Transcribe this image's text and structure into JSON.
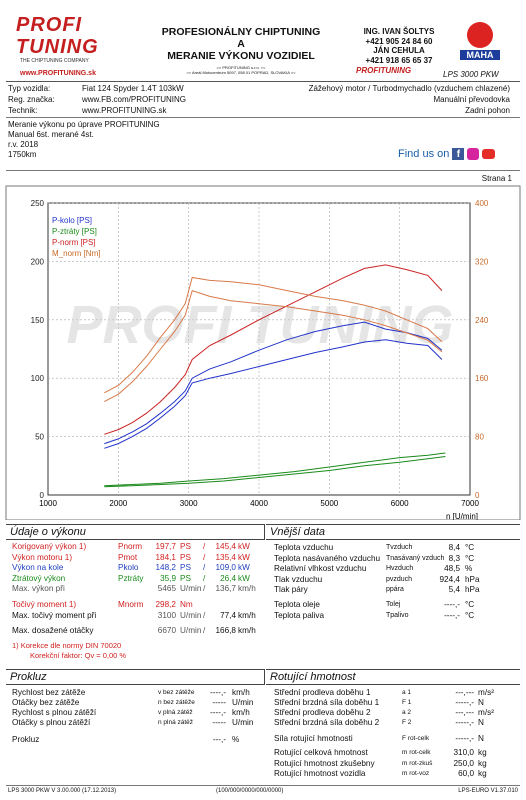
{
  "header": {
    "logo_text": "PROFI TUNING",
    "logo_sub": "THE CHIPTUNING COMPANY",
    "logo_url": "www.PROFITUNING.sk",
    "title_lines": [
      "PROFESIONÁLNY CHIPTUNING",
      "A",
      "MERANIE VÝKONU VOZIDIEL"
    ],
    "company_line1": ">> PROFITUNING s.r.o. <<",
    "company_line2": ">> Areál Motocentrum 5097, 058 01 POPRAD, SLOVAKIA <<",
    "contact_name": "ING. IVAN ŠOLTYS",
    "phone1": "+421 905 24 84 60",
    "contact_name2": "JÁN CEHULA",
    "phone2": "+421 918 65 65 37",
    "brand_small": "PROFITUNING",
    "maha_text": "MAHA",
    "model": "LPS 3000 PKW"
  },
  "vehicle": {
    "type_label": "Typ vozidla:",
    "type_value": "Fiat 124 Spyder 1.4T 103kW",
    "reg_label": "Reg. značka:",
    "reg_value": "www.FB.com/PROFITUNING",
    "tech_label": "Technik:",
    "tech_value": "www.PROFITUNING.sk",
    "right1": "Zážehový motor / Turbodmychadlo (vzduchem chlazené)",
    "right2": "Manuální převodovka",
    "right3": "Zadní pohon"
  },
  "notes": {
    "lines": [
      "Meranie výkonu po úprave PROFITUNING",
      "Manual 6st. merané 4st.",
      "r.v. 2018",
      "1750km"
    ],
    "find_us": "Find us on",
    "page": "Strana 1"
  },
  "chart_data": {
    "type": "line",
    "x_label": "n [U/min]",
    "x_ticks": [
      1000,
      2000,
      3000,
      4000,
      5000,
      6000,
      7000
    ],
    "y_left_ticks": [
      0,
      50,
      100,
      150,
      200,
      250
    ],
    "y_right_ticks": [
      0,
      80,
      160,
      240,
      320,
      400
    ],
    "legend": [
      "P-kolo [PS]",
      "P-ztráty [PS]",
      "P-norm [PS]",
      "M_norm [Nm]"
    ],
    "series": [
      {
        "name": "P-kolo [PS]",
        "color": "#2233cc",
        "unit": "PS",
        "x": [
          1800,
          2000,
          2200,
          2400,
          2600,
          2800,
          2950,
          3050,
          3300,
          3600,
          4000,
          4400,
          4800,
          5200,
          5500,
          5800,
          6100,
          6400,
          6600
        ],
        "y": [
          44,
          48,
          54,
          61,
          70,
          80,
          89,
          100,
          108,
          114,
          124,
          133,
          140,
          145,
          148,
          142,
          139,
          134,
          124
        ]
      },
      {
        "name": "P-kolo [PS] (2)",
        "color": "#2233cc",
        "unit": "PS",
        "x": [
          1800,
          2000,
          2200,
          2400,
          2600,
          2800,
          2950,
          3050,
          3300,
          3600,
          4000,
          4400,
          4800,
          5200,
          5500,
          5800,
          6100,
          6400,
          6600
        ],
        "y": [
          40,
          44,
          50,
          57,
          66,
          76,
          85,
          96,
          100,
          104,
          110,
          116,
          122,
          127,
          131,
          133,
          130,
          128,
          116
        ]
      },
      {
        "name": "P-ztráty [PS]",
        "color": "#1a8a1a",
        "unit": "PS",
        "x": [
          1800,
          2200,
          2600,
          3000,
          3500,
          4000,
          4500,
          5000,
          5500,
          6000,
          6400,
          6650
        ],
        "y": [
          8,
          9,
          10,
          12,
          14,
          17,
          20,
          24,
          28,
          32,
          34,
          36
        ]
      },
      {
        "name": "P-ztráty [PS] (2)",
        "color": "#1a8a1a",
        "unit": "PS",
        "x": [
          1800,
          2200,
          2600,
          3000,
          3500,
          4000,
          4500,
          5000,
          5500,
          6000,
          6400,
          6650
        ],
        "y": [
          7,
          8,
          9,
          10,
          12,
          15,
          18,
          21,
          25,
          28,
          31,
          33
        ]
      },
      {
        "name": "P-norm [PS]",
        "color": "#cc2222",
        "unit": "PS",
        "x": [
          1800,
          2000,
          2200,
          2400,
          2600,
          2800,
          2950,
          3050,
          3300,
          3600,
          4000,
          4400,
          4800,
          5200,
          5500,
          5800,
          6100,
          6400,
          6600
        ],
        "y": [
          52,
          56,
          62,
          70,
          80,
          92,
          103,
          116,
          128,
          137,
          150,
          162,
          174,
          186,
          194,
          197,
          193,
          188,
          175
        ]
      },
      {
        "name": "M_norm [Nm]",
        "color": "#d87a4a",
        "unit": "Nm",
        "x": [
          1800,
          2000,
          2200,
          2400,
          2600,
          2800,
          2950,
          3050,
          3300,
          3600,
          4000,
          4400,
          4800,
          5200,
          5500,
          5800,
          6100,
          6400,
          6600
        ],
        "y": [
          140,
          150,
          168,
          190,
          216,
          240,
          262,
          298,
          294,
          292,
          288,
          280,
          272,
          266,
          260,
          252,
          240,
          228,
          210
        ]
      },
      {
        "name": "M_norm [Nm] (2)",
        "color": "#d87a4a",
        "unit": "Nm",
        "x": [
          1800,
          2000,
          2200,
          2400,
          2600,
          2800,
          2950,
          3050,
          3300,
          3600,
          4000,
          4400,
          4800,
          5200,
          5500,
          5800,
          6100,
          6400,
          6600
        ],
        "y": [
          128,
          138,
          155,
          176,
          200,
          224,
          246,
          280,
          272,
          266,
          262,
          258,
          252,
          246,
          240,
          232,
          222,
          212,
          196
        ]
      }
    ]
  },
  "udaje": {
    "title": "Údaje o výkonu",
    "rows": [
      {
        "label": "Korigovaný výkon",
        "sup": "1)",
        "sym": "P",
        "sub": "norm",
        "v1": "197,7",
        "u1": "PS",
        "v2": "145,4",
        "u2": "kW",
        "color": "red"
      },
      {
        "label": "Výkon motoru",
        "sup": "1)",
        "sym": "P",
        "sub": "mot",
        "v1": "184,1",
        "u1": "PS",
        "v2": "135,4",
        "u2": "kW",
        "color": "red"
      },
      {
        "label": "Výkon na kole",
        "sup": "",
        "sym": "P",
        "sub": "kolo",
        "v1": "148,2",
        "u1": "PS",
        "v2": "109,0",
        "u2": "kW",
        "color": "blue"
      },
      {
        "label": "Ztrátový výkon",
        "sup": "",
        "sym": "P",
        "sub": "ztráty",
        "v1": "35,9",
        "u1": "PS",
        "v2": "26,4",
        "u2": "kW",
        "color": "green"
      },
      {
        "label": "Max. výkon při",
        "sup": "",
        "sym": "",
        "sub": "",
        "v1": "5465",
        "u1": "U/min",
        "v2": "136,7",
        "u2": "km/h",
        "color": "gray"
      }
    ],
    "torque_label": "Točivý moment",
    "torque_sup": "1)",
    "torque_sym": "M",
    "torque_sub": "norm",
    "torque_val": "298,2",
    "torque_unit": "Nm",
    "max_torque_label": "Max. točivý moment při",
    "max_torque_rpm": "3100",
    "max_torque_rpm_unit": "U/min",
    "max_torque_speed": "77,4",
    "max_torque_speed_unit": "km/h",
    "max_rpm_label": "Max. dosažené otáčky",
    "max_rpm": "6670",
    "max_rpm_unit": "U/min",
    "max_rpm_speed": "166,8",
    "max_rpm_speed_unit": "km/h",
    "norm_note": "Korekce dle normy DIN 70020",
    "norm_note_sup": "1)",
    "factor_label": "Korekční faktor: Q",
    "factor_value": "0,00 %"
  },
  "vnejsi": {
    "title": "Vnější data",
    "rows": [
      {
        "label": "Teplota vzduchu",
        "sym": "T",
        "sub": "vzduch",
        "val": "8,4",
        "unit": "°C"
      },
      {
        "label": "Teplota nasávaného vzduchu",
        "sym": "T",
        "sub": "nasávaný vzduch",
        "val": "8,3",
        "unit": "°C"
      },
      {
        "label": "Relativní vlhkost vzduchu",
        "sym": "H",
        "sub": "vzduch",
        "val": "48,5",
        "unit": "%"
      },
      {
        "label": "Tlak vzduchu",
        "sym": "p",
        "sub": "vzduch",
        "val": "924,4",
        "unit": "hPa"
      },
      {
        "label": "Tlak páry",
        "sym": "p",
        "sub": "pára",
        "val": "5,4",
        "unit": "hPa"
      },
      {
        "label": "Teplota oleje",
        "sym": "T",
        "sub": "olej",
        "val": "----,-",
        "unit": "°C"
      },
      {
        "label": "Teplota paliva",
        "sym": "T",
        "sub": "palivo",
        "val": "----,-",
        "unit": "°C"
      }
    ]
  },
  "prokluz": {
    "title": "Prokluz",
    "rows": [
      {
        "label": "Rychlost bez zátěže",
        "sym": "v",
        "sub": "bez zátěže",
        "val": "----,-",
        "unit": "km/h"
      },
      {
        "label": "Otáčky bez zátěže",
        "sym": "n",
        "sub": "bez zátěže",
        "val": "-----",
        "unit": "U/min"
      },
      {
        "label": "Rychlost s plnou zátěží",
        "sym": "v",
        "sub": "plná zátěž",
        "val": "----,-",
        "unit": "km/h"
      },
      {
        "label": "Otáčky s plnou zátěží",
        "sym": "n",
        "sub": "plná zátěž",
        "val": "-----",
        "unit": "U/min"
      },
      {
        "label": "Prokluz",
        "sym": "",
        "sub": "",
        "val": "---,-",
        "unit": "%"
      }
    ]
  },
  "rotujici": {
    "title": "Rotující hmotnost",
    "rows": [
      {
        "label": "Střední prodleva doběhu 1",
        "sym": "a",
        "sub": "1",
        "val": "---,---",
        "unit": "m/s²"
      },
      {
        "label": "Střední brzdná síla doběhu 1",
        "sym": "F",
        "sub": "1",
        "val": "-----,-",
        "unit": "N"
      },
      {
        "label": "Střední prodleva doběhu 2",
        "sym": "a",
        "sub": "2",
        "val": "---,---",
        "unit": "m/s²"
      },
      {
        "label": "Střední brzdná síla doběhu 2",
        "sym": "F",
        "sub": "2",
        "val": "-----,-",
        "unit": "N"
      },
      {
        "label": "Síla rotující hmotnosti",
        "sym": "F",
        "sub": "rot-celk",
        "val": "-----,-",
        "unit": "N"
      },
      {
        "label": "Rotující celková hmotnost",
        "sym": "m",
        "sub": "rot-celk",
        "val": "310,0",
        "unit": "kg"
      },
      {
        "label": "Rotující hmotnost zkušebny",
        "sym": "m",
        "sub": "rot-zkuš",
        "val": "250,0",
        "unit": "kg"
      },
      {
        "label": "Rotující hmotnost vozidla",
        "sym": "m",
        "sub": "rot-voz",
        "val": "60,0",
        "unit": "kg"
      }
    ]
  },
  "footer": {
    "left": "LPS 3000 PKW V 3.00.000 (17.12.2013)",
    "mid": "(100/000/0000/000/0000)",
    "right": "LPS-EURO V1.37.010"
  }
}
